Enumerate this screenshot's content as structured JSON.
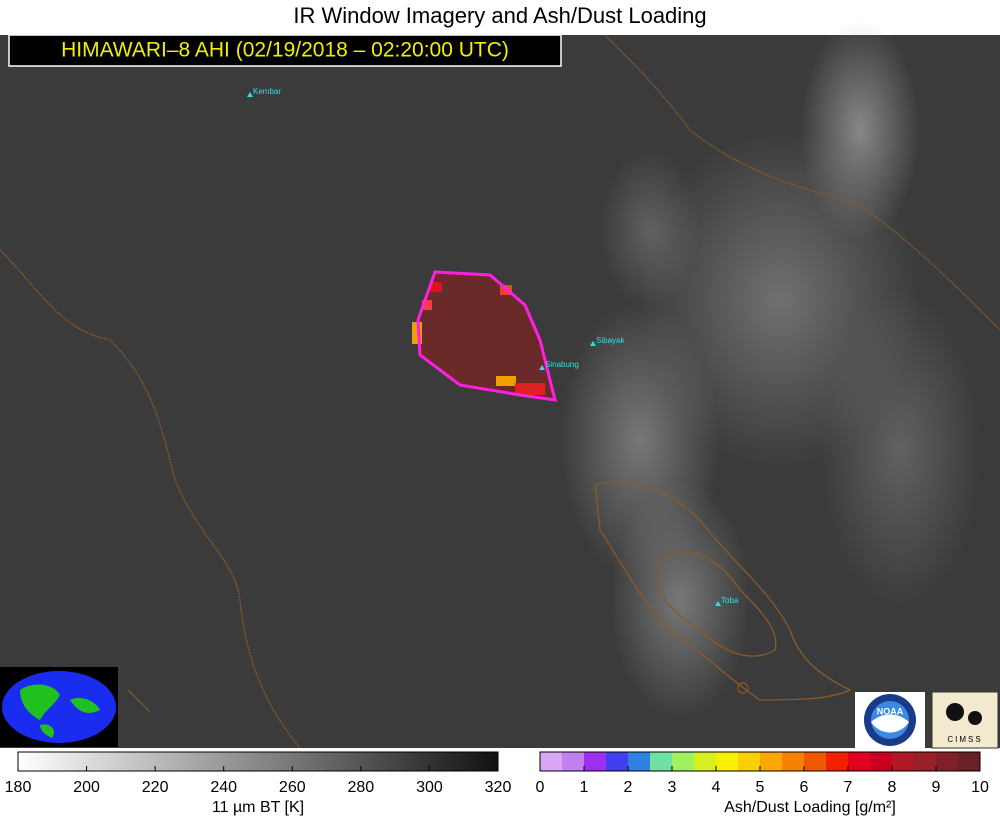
{
  "header": {
    "title": "IR Window Imagery and Ash/Dust Loading",
    "subtitle": "HIMAWARI–8 AHI (02/19/2018 – 02:20:00 UTC)"
  },
  "volcanoes": [
    {
      "name": "Kembar"
    },
    {
      "name": "Sibayak"
    },
    {
      "name": "Sinabung"
    },
    {
      "name": "Toba"
    }
  ],
  "colorbars": [
    {
      "label": "11 µm BT [K]",
      "ticks": [
        180,
        200,
        220,
        240,
        260,
        280,
        300,
        320
      ],
      "colors": [
        "#ffffff",
        "#111111"
      ]
    },
    {
      "label": "Ash/Dust Loading [g/m²]",
      "ticks": [
        0,
        1,
        2,
        3,
        4,
        5,
        6,
        7,
        8,
        9,
        10
      ],
      "colors": [
        "#d9a6f5",
        "#c080f0",
        "#9b30f0",
        "#4040f0",
        "#3080e0",
        "#70e0a0",
        "#a0f060",
        "#d8f020",
        "#f8f000",
        "#f8d000",
        "#f8a800",
        "#f88000",
        "#f05800",
        "#f02000",
        "#e00020",
        "#c80020",
        "#b01828",
        "#982028",
        "#802028",
        "#6a2028"
      ]
    }
  ],
  "logos": [
    {
      "text": "NOAA"
    },
    {
      "text": "CIMSS"
    }
  ]
}
